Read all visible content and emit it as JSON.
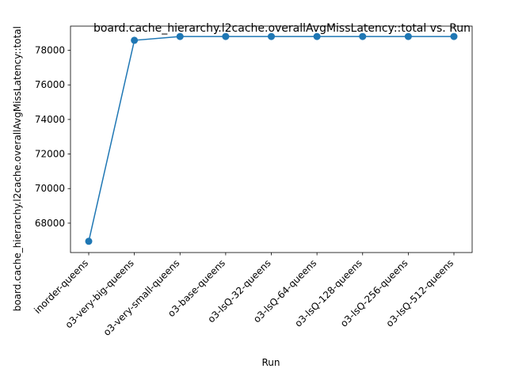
{
  "chart_data": {
    "type": "line",
    "title": "board.cache_hierarchy.l2cache.overallAvgMissLatency::total vs. Run",
    "xlabel": "Run",
    "ylabel": "board.cache_hierarchy.l2cache.overallAvgMissLatency::total",
    "categories": [
      "inorder-queens",
      "o3-very-big-queens",
      "o3-very-small-queens",
      "o3-base-queens",
      "o3-lsQ-32-queens",
      "o3-lsQ-64-queens",
      "o3-lsQ-128-queens",
      "o3-lsQ-256-queens",
      "o3-lsQ-512-queens"
    ],
    "series": [
      {
        "values": [
          66950,
          78580,
          78800,
          78800,
          78800,
          78800,
          78800,
          78800,
          78800
        ],
        "color": "#1f77b4"
      }
    ],
    "ylim": [
      66300,
      79400
    ],
    "yticks": [
      68000,
      70000,
      72000,
      74000,
      76000,
      78000
    ],
    "grid": false,
    "legend": "none",
    "marker": "circle"
  }
}
